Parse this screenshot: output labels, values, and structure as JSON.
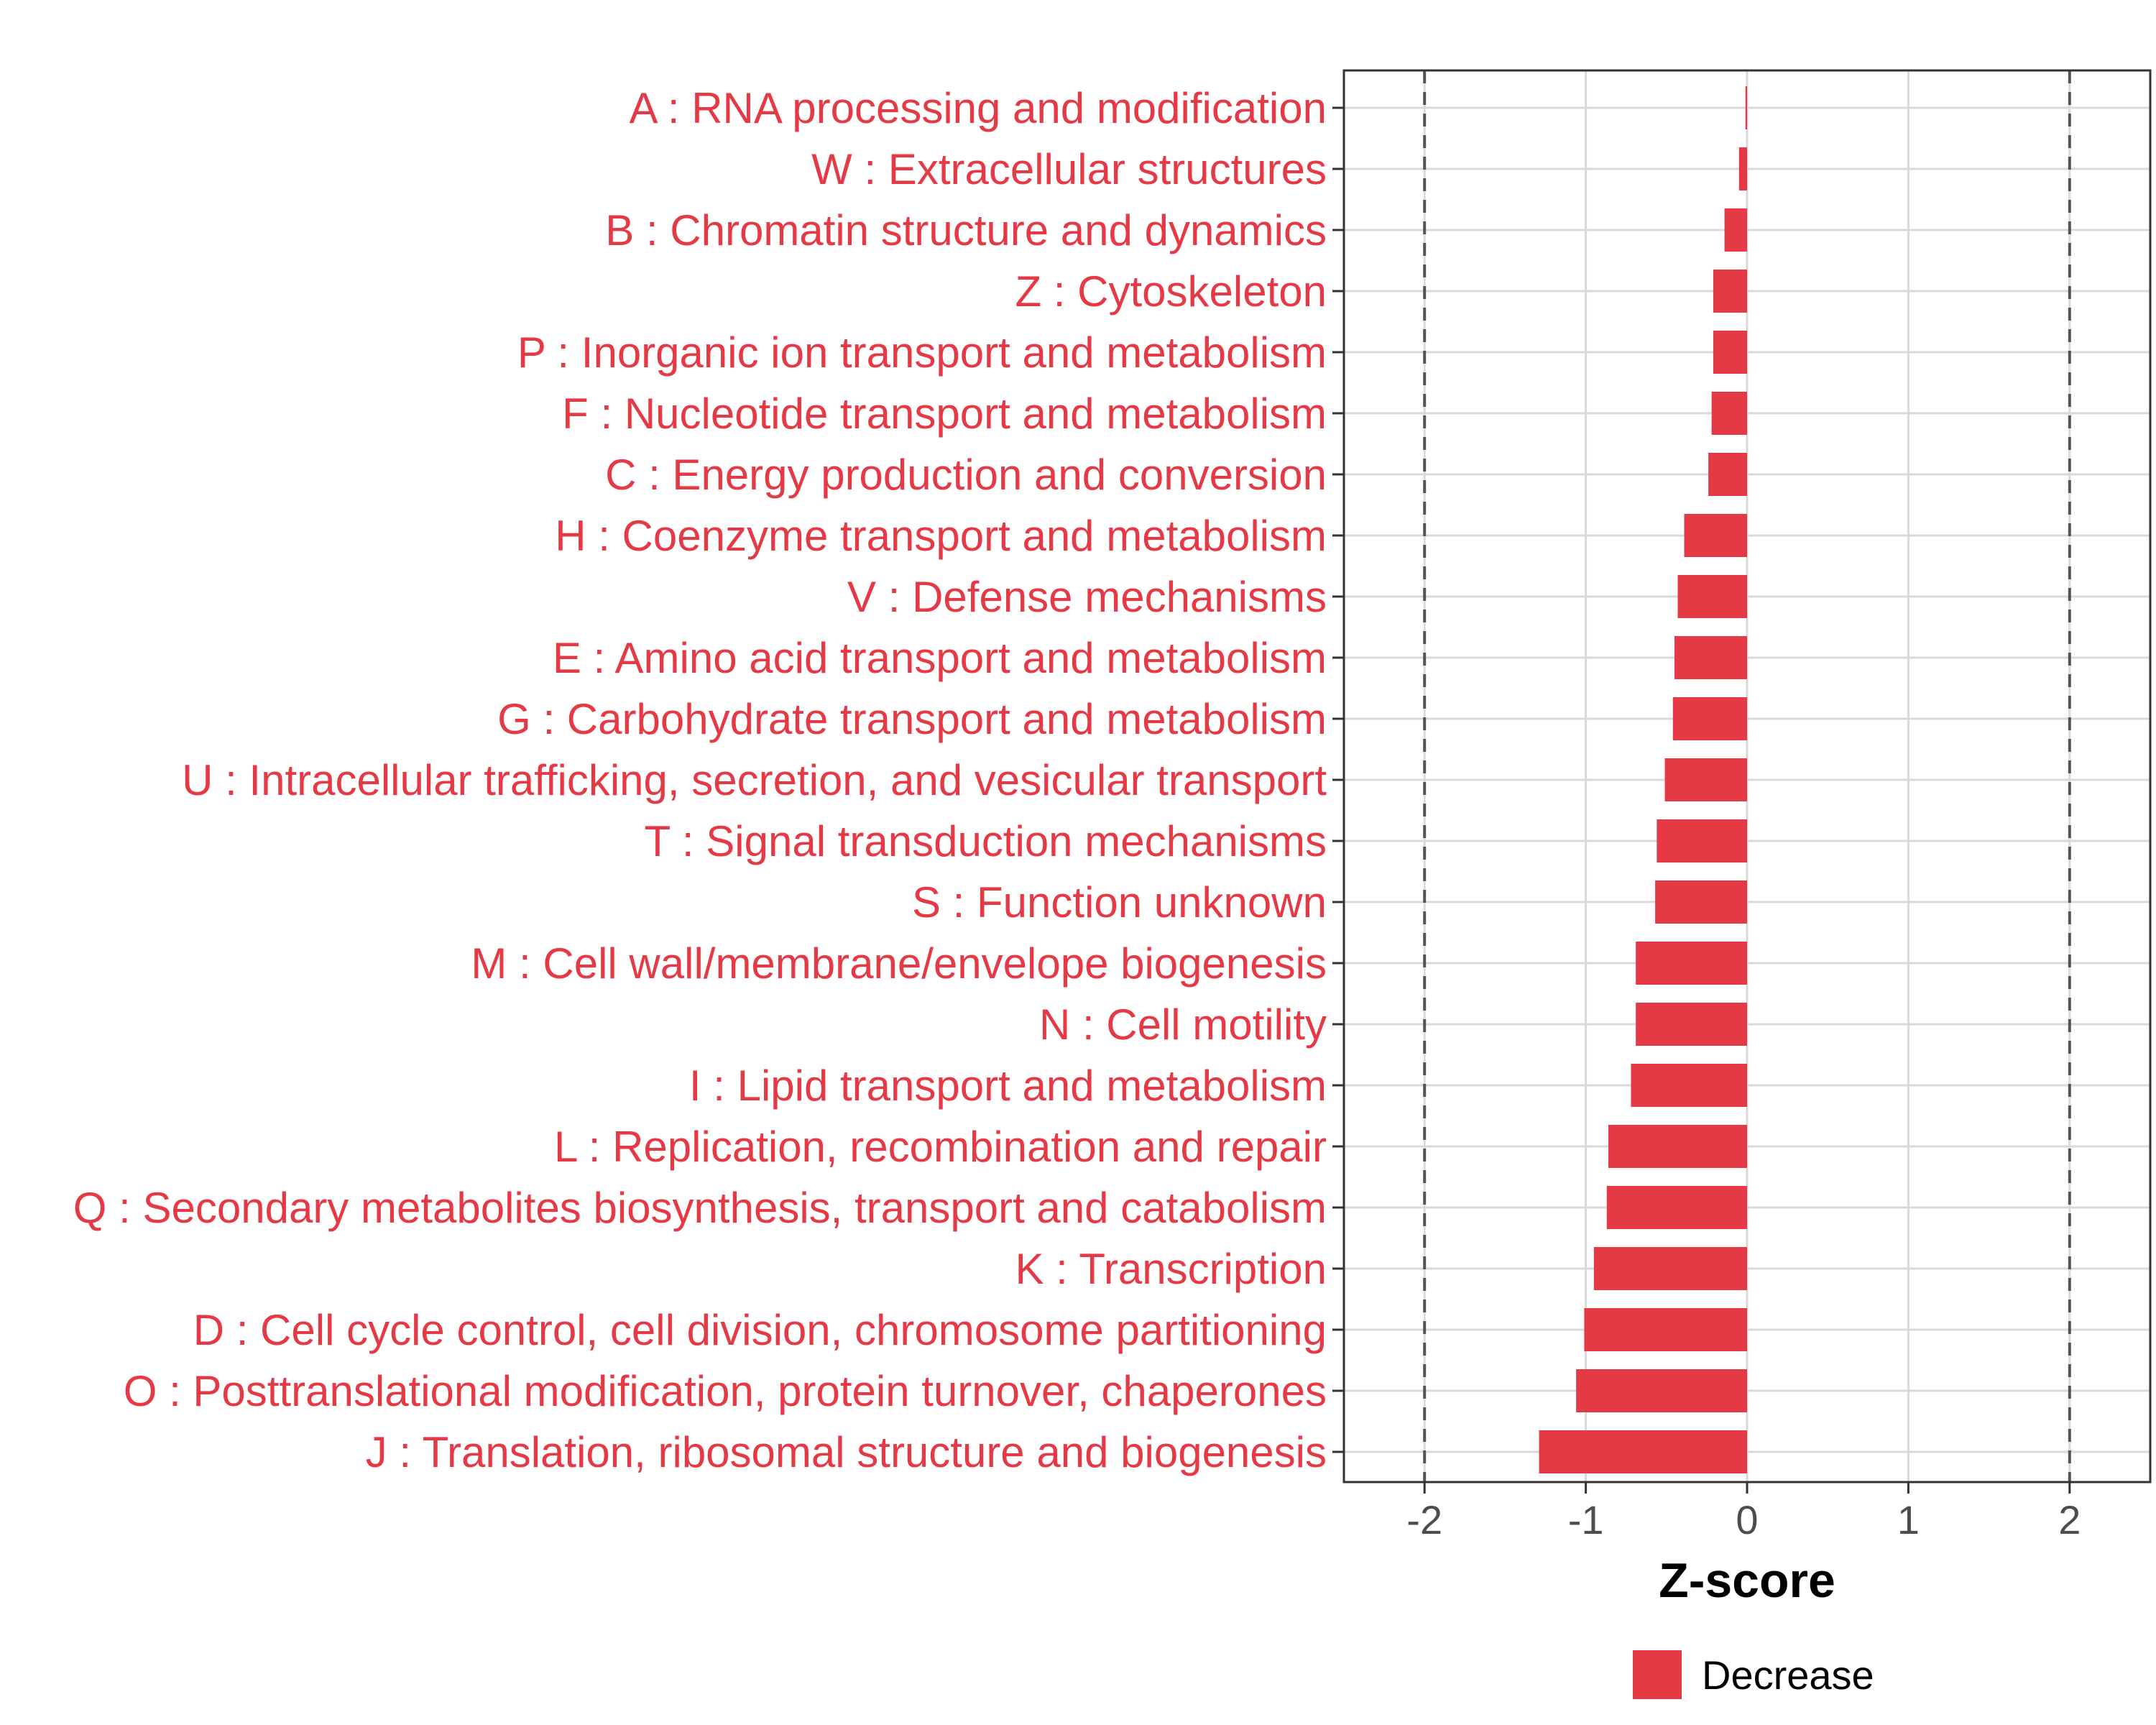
{
  "chart_data": {
    "type": "bar",
    "orientation": "horizontal",
    "categories": [
      "A : RNA processing and modification",
      "W : Extracellular structures",
      "B : Chromatin structure and dynamics",
      "Z : Cytoskeleton",
      "P : Inorganic ion transport and metabolism",
      "F : Nucleotide transport and metabolism",
      "C : Energy production and conversion",
      "H : Coenzyme transport and metabolism",
      "V : Defense mechanisms",
      "E : Amino acid transport and metabolism",
      "G : Carbohydrate transport and metabolism",
      "U : Intracellular trafficking, secretion, and vesicular transport",
      "T : Signal transduction mechanisms",
      "S : Function unknown",
      "M : Cell wall/membrane/envelope biogenesis",
      "N : Cell motility",
      "I : Lipid transport and metabolism",
      "L : Replication, recombination and repair",
      "Q : Secondary metabolites biosynthesis, transport and catabolism",
      "K : Transcription",
      "D : Cell cycle control, cell division, chromosome partitioning",
      "O : Posttranslational modification, protein turnover, chaperones",
      "J : Translation, ribosomal structure and biogenesis"
    ],
    "values": [
      -0.01,
      -0.05,
      -0.14,
      -0.21,
      -0.21,
      -0.22,
      -0.24,
      -0.39,
      -0.43,
      -0.45,
      -0.46,
      -0.51,
      -0.56,
      -0.57,
      -0.69,
      -0.69,
      -0.72,
      -0.86,
      -0.87,
      -0.95,
      -1.01,
      -1.06,
      -1.29
    ],
    "series": [
      {
        "name": "Decrease",
        "color": "#E63946"
      }
    ],
    "xlabel": "Z-score",
    "xlim": [
      -2.5,
      2.5
    ],
    "xticks": [
      -2,
      -1,
      0,
      1,
      2
    ],
    "xtick_labels": [
      "-2",
      "-1",
      "0",
      "1",
      "2"
    ],
    "reference_lines": [
      -2,
      2
    ],
    "grid": true,
    "legend": {
      "position": "bottom",
      "entries": [
        "Decrease"
      ]
    },
    "colors": {
      "bar": "#E63946",
      "label": "#E63946",
      "grid": "#d9d9d9",
      "reference": "#555555"
    }
  }
}
